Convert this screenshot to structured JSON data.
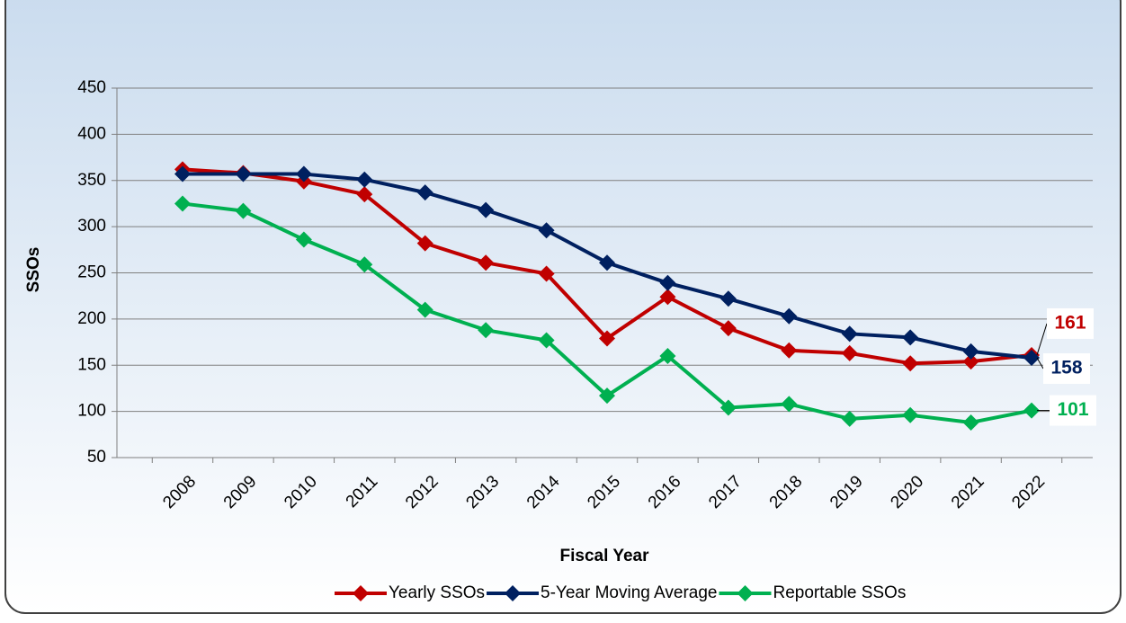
{
  "chart_data": {
    "type": "line",
    "y_label": "SSOs",
    "x_label": "Fiscal Year",
    "categories": [
      "2008",
      "2009",
      "2010",
      "2011",
      "2012",
      "2013",
      "2014",
      "2015",
      "2016",
      "2017",
      "2018",
      "2019",
      "2020",
      "2021",
      "2022"
    ],
    "series": [
      {
        "name": "Yearly SSOs",
        "color": "#c00000",
        "values": [
          362,
          358,
          349,
          335,
          282,
          261,
          249,
          179,
          224,
          190,
          166,
          163,
          152,
          154,
          161
        ]
      },
      {
        "name": "5-Year Moving Average",
        "color": "#002060",
        "values": [
          357,
          357,
          357,
          351,
          337,
          318,
          296,
          261,
          239,
          222,
          203,
          184,
          180,
          165,
          158
        ]
      },
      {
        "name": "Reportable SSOs",
        "color": "#00b050",
        "values": [
          325,
          317,
          286,
          259,
          210,
          188,
          177,
          117,
          160,
          104,
          108,
          92,
          96,
          88,
          101
        ]
      }
    ],
    "ylim": [
      50,
      450
    ],
    "yticks": [
      50,
      100,
      150,
      200,
      250,
      300,
      350,
      400,
      450
    ],
    "grid": true,
    "legend": "bottom"
  }
}
